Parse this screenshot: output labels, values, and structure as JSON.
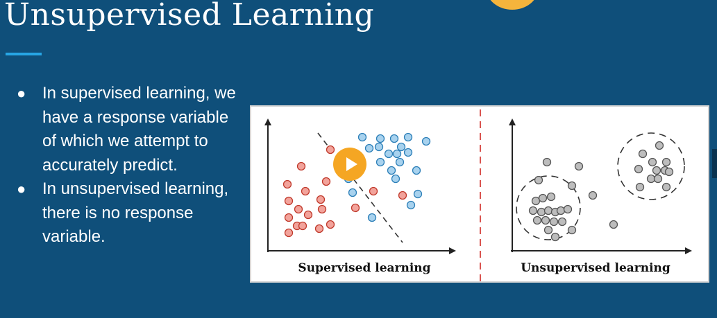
{
  "slide": {
    "title": "Unsupervised Learning",
    "bullets": [
      "In supervised learning, we have a response variable of which we attempt to accurately predict.",
      "In unsupervised learning, there is no response variable."
    ]
  },
  "figure": {
    "left_label": "Supervised learning",
    "right_label": "Unsupervised learning"
  },
  "player": {
    "play_icon": "play-icon"
  },
  "colors": {
    "background": "#0f4f7a",
    "accent_line": "#27a6e5",
    "play": "#f5a623",
    "red_point": "#f2a39b",
    "blue_point": "#a8d2ee",
    "gray_point": "#bdbdbd",
    "divider": "#d9534f"
  }
}
